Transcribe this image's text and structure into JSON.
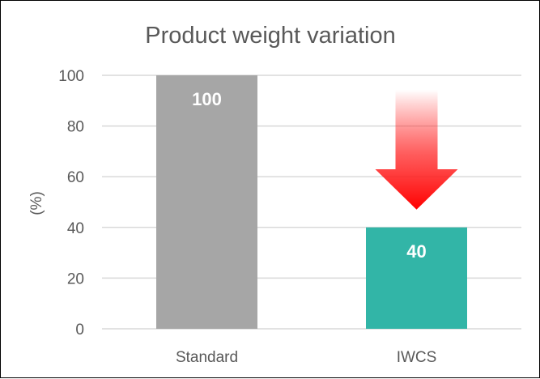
{
  "chart_data": {
    "type": "bar",
    "title": "Product weight variation",
    "xlabel": "",
    "ylabel": "(%)",
    "categories": [
      "Standard",
      "IWCS"
    ],
    "values": [
      100,
      40
    ],
    "data_labels": [
      "100",
      "40"
    ],
    "bar_colors": [
      "#a6a6a6",
      "#32b5a7"
    ],
    "ylim": [
      0,
      100
    ],
    "yticks": [
      0,
      20,
      40,
      60,
      80,
      100
    ],
    "ytick_labels": [
      "0",
      "20",
      "40",
      "60",
      "80",
      "100"
    ],
    "grid": true,
    "legend": "none",
    "annotation": {
      "type": "down-arrow",
      "color": "#ff0000",
      "from_category": "IWCS"
    }
  }
}
